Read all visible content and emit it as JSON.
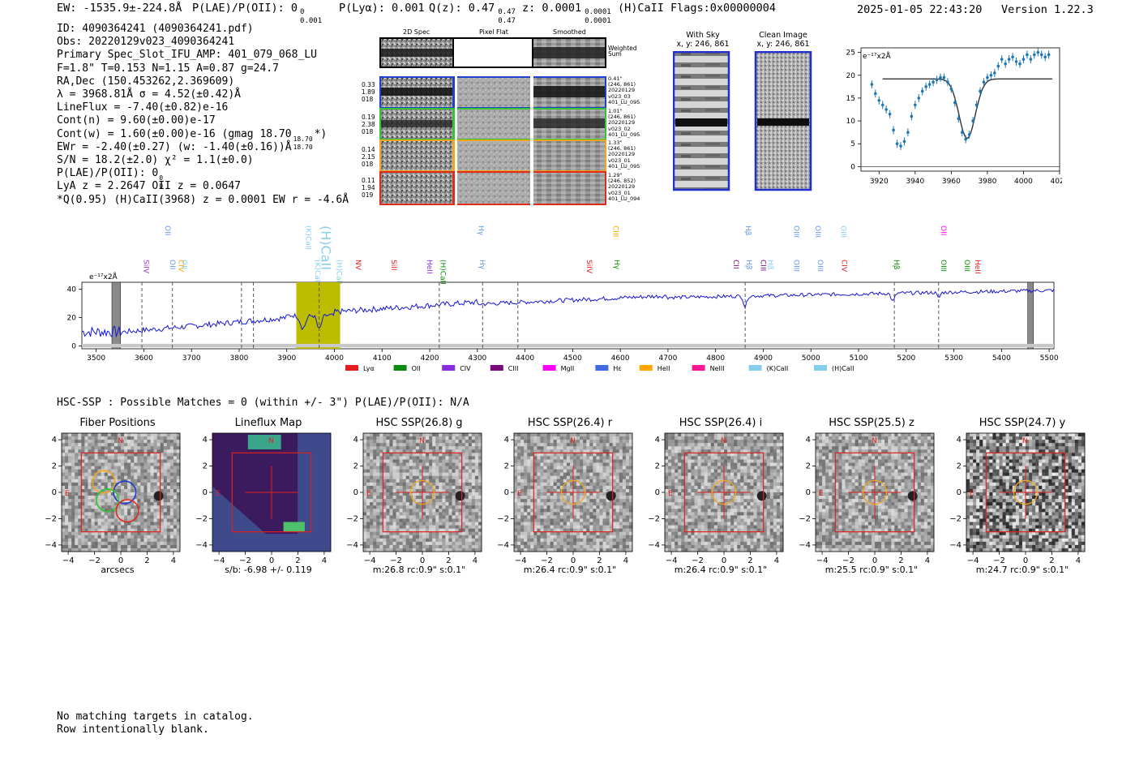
{
  "header": {
    "ew": "EW: -1535.9±-224.8Å",
    "plae": "P(LAE)/P(OII): 0",
    "plae_sup": "0",
    "plae_sub": "0.001",
    "plya": "P(Lyα): 0.001",
    "qz": "Q(z): 0.47",
    "qz_sup": "0.47",
    "qz_sub": "0.47",
    "z": "z: 0.0001",
    "z_sup": "0.0001",
    "z_sub": "0.0001",
    "line": "(H)CaII",
    "flags": "Flags:0x00000004",
    "timestamp": "2025-01-05 22:43:20",
    "version": "Version 1.22.3"
  },
  "info_lines": [
    "ID: 4090364241 (4090364241.pdf)",
    "Obs: 20220129v023_4090364241",
    "Primary Spec_Slot_IFU_AMP: 401_079_068_LU",
    "F=1.8\"  T=0.153  N=1.15  A=0.87  g=24.7",
    "RA,Dec (150.453262,2.369609)",
    "λ = 3968.81Å  σ = 4.52(±0.42)Å",
    "LineFlux = -7.40(±0.82)e-16",
    "Cont(n) = 9.60(±0.00)e-17",
    "Cont(w) = 1.60(±0.00)e-16 (gmag 18.70",
    "EWr = -2.40(±0.27) (w: -1.40(±0.16))Å",
    "S/N = 18.2(±2.0)  χ² = 1.1(±0.0)",
    "P(LAE)/P(OII): 0",
    "LyA z = 2.2647  OII z = 0.0647",
    "*Q(0.95) (H)CaII(3968) z = 0.0001  EW r = -4.6Å"
  ],
  "info_extras": {
    "gmag_sup": "18.70",
    "gmag_sub": "18.70",
    "gmag_close": "*)",
    "plae_sup": "0",
    "plae_sub": "0"
  },
  "cutouts": {
    "col_headers": [
      "2D Spec",
      "Pixel Flat",
      "Smoothed"
    ],
    "weighted_label": "Weighted Sum",
    "rows": [
      {
        "left": [
          "0.33",
          "1.89",
          "018"
        ],
        "right": [
          "0.41\"",
          "(246, 861)",
          "20220129",
          "v023_03",
          "401_LU_095"
        ],
        "color": "#1f3fd0"
      },
      {
        "left": [
          "0.19",
          "2.38",
          "018"
        ],
        "right": [
          "1.01\"",
          "(246, 861)",
          "20220129",
          "v023_02",
          "401_LU_095"
        ],
        "color": "#2fc62f"
      },
      {
        "left": [
          "0.14",
          "2.15",
          "018"
        ],
        "right": [
          "1.33\"",
          "(246, 861)",
          "20220129",
          "v023_01",
          "401_LU_095"
        ],
        "color": "#f3a51c"
      },
      {
        "left": [
          "0.11",
          "1.94",
          "019"
        ],
        "right": [
          "1.29\"",
          "(246, 852)",
          "20220129",
          "v023_01",
          "401_LU_094"
        ],
        "color": "#e02a1a"
      }
    ]
  },
  "sky": {
    "with_sky_title": "With Sky",
    "with_sky_coords": "x, y: 246, 861",
    "clean_title": "Clean Image",
    "clean_coords": "x, y: 246, 861"
  },
  "chart_data": [
    {
      "type": "line",
      "title": "",
      "ylabel": "e⁻¹⁷x2Å",
      "xlim": [
        3910,
        4020
      ],
      "ylim": [
        -1,
        26
      ],
      "xticks": [
        3920,
        3940,
        3960,
        3980,
        4000,
        4020
      ],
      "yticks": [
        0,
        5,
        10,
        15,
        20,
        25
      ],
      "points": [
        {
          "x": 3916,
          "y": 18.0
        },
        {
          "x": 3918,
          "y": 16.0
        },
        {
          "x": 3920,
          "y": 14.5
        },
        {
          "x": 3922,
          "y": 13.5
        },
        {
          "x": 3924,
          "y": 12.5
        },
        {
          "x": 3926,
          "y": 11.5
        },
        {
          "x": 3928,
          "y": 8.0
        },
        {
          "x": 3930,
          "y": 5.0
        },
        {
          "x": 3932,
          "y": 4.5
        },
        {
          "x": 3934,
          "y": 5.5
        },
        {
          "x": 3936,
          "y": 7.5
        },
        {
          "x": 3938,
          "y": 11.0
        },
        {
          "x": 3940,
          "y": 13.5
        },
        {
          "x": 3942,
          "y": 15.0
        },
        {
          "x": 3944,
          "y": 16.5
        },
        {
          "x": 3946,
          "y": 17.5
        },
        {
          "x": 3948,
          "y": 18.0
        },
        {
          "x": 3950,
          "y": 18.5
        },
        {
          "x": 3952,
          "y": 19.0
        },
        {
          "x": 3954,
          "y": 19.5
        },
        {
          "x": 3956,
          "y": 19.5
        },
        {
          "x": 3958,
          "y": 18.5
        },
        {
          "x": 3960,
          "y": 17.0
        },
        {
          "x": 3962,
          "y": 14.0
        },
        {
          "x": 3964,
          "y": 10.5
        },
        {
          "x": 3966,
          "y": 7.5
        },
        {
          "x": 3968,
          "y": 6.0
        },
        {
          "x": 3970,
          "y": 7.0
        },
        {
          "x": 3972,
          "y": 10.0
        },
        {
          "x": 3974,
          "y": 13.5
        },
        {
          "x": 3976,
          "y": 16.5
        },
        {
          "x": 3978,
          "y": 18.5
        },
        {
          "x": 3980,
          "y": 19.5
        },
        {
          "x": 3982,
          "y": 20.0
        },
        {
          "x": 3984,
          "y": 20.5
        },
        {
          "x": 3986,
          "y": 22.0
        },
        {
          "x": 3988,
          "y": 23.5
        },
        {
          "x": 3990,
          "y": 22.5
        },
        {
          "x": 3992,
          "y": 23.5
        },
        {
          "x": 3994,
          "y": 24.0
        },
        {
          "x": 3996,
          "y": 23.0
        },
        {
          "x": 3998,
          "y": 22.5
        },
        {
          "x": 4000,
          "y": 23.5
        },
        {
          "x": 4002,
          "y": 24.5
        },
        {
          "x": 4004,
          "y": 23.5
        },
        {
          "x": 4006,
          "y": 24.5
        },
        {
          "x": 4008,
          "y": 25.0
        },
        {
          "x": 4010,
          "y": 24.5
        },
        {
          "x": 4012,
          "y": 24.0
        },
        {
          "x": 4014,
          "y": 24.5
        }
      ],
      "continuum": 19.2,
      "fit_center": 3968.8,
      "fit_sigma": 4.52,
      "fit_depth": 13.0
    },
    {
      "type": "line",
      "ylabel": "e⁻¹⁷x2Å",
      "xlim": [
        3470,
        5510
      ],
      "ylim": [
        -2,
        45
      ],
      "xticks": [
        3500,
        3600,
        3700,
        3800,
        3900,
        4000,
        4100,
        4200,
        4300,
        4400,
        4500,
        4600,
        4700,
        4800,
        4900,
        5000,
        5100,
        5200,
        5300,
        5400,
        5500
      ],
      "yticks": [
        0,
        20,
        40
      ],
      "highlight_band": [
        3920,
        4012
      ],
      "dashed_lines": [
        3596,
        3660,
        3805,
        3830,
        3968,
        4220,
        4311,
        4385,
        4862,
        5175,
        5268
      ],
      "hatched_bands": [
        [
          3533,
          3551
        ],
        [
          5455,
          5467
        ]
      ],
      "legend": [
        "Lyα",
        "OII",
        "CIV",
        "CIII",
        "MgII",
        "Hε",
        "HeII",
        "NeIII",
        "(K)CaII",
        "(H)CaII"
      ],
      "legend_colors": [
        "#e41a1c",
        "#0a8c0a",
        "#8a2be2",
        "#7a0a7a",
        "#ff00ff",
        "#4169e1",
        "#ffa500",
        "#ff1493",
        "#87ceeb",
        "#87ceeb"
      ],
      "line_labels": [
        {
          "text": "SiIV",
          "x": 3595,
          "row": 1,
          "color": "#9932cc"
        },
        {
          "text": "OII",
          "x": 3640,
          "row": 0,
          "color": "#6495ed"
        },
        {
          "text": "OII",
          "x": 3650,
          "row": 1,
          "color": "#6495ed"
        },
        {
          "text": "CIV",
          "x": 3668,
          "row": 1,
          "color": "#ffa500"
        },
        {
          "text": "OII",
          "x": 3675,
          "row": 1,
          "color": "#87ceeb"
        },
        {
          "text": "(K)CaII",
          "x": 3935,
          "row": 0,
          "color": "#87ceeb"
        },
        {
          "text": "(K)CaII",
          "x": 3955,
          "row": 1,
          "color": "#87ceeb"
        },
        {
          "text": "(H)CaII",
          "x": 3968,
          "row": 0,
          "color": "#87ceeb"
        },
        {
          "text": "(H)CaII",
          "x": 4000,
          "row": 1,
          "color": "#87ceeb"
        },
        {
          "text": "NV",
          "x": 4040,
          "row": 1,
          "color": "#e41a1c"
        },
        {
          "text": "SiII",
          "x": 4115,
          "row": 1,
          "color": "#e41a1c"
        },
        {
          "text": "HeII",
          "x": 4190,
          "row": 1,
          "color": "#8a2be2"
        },
        {
          "text": "(H)CaII",
          "x": 4218,
          "row": 1,
          "color": "#0a8c0a"
        },
        {
          "text": "Hγ",
          "x": 4298,
          "row": 0,
          "color": "#6495ed"
        },
        {
          "text": "Hγ",
          "x": 4300,
          "row": 1,
          "color": "#6495ed"
        },
        {
          "text": "SiIV",
          "x": 4525,
          "row": 1,
          "color": "#e41a1c"
        },
        {
          "text": "CIII",
          "x": 4580,
          "row": 0,
          "color": "#ffa500"
        },
        {
          "text": "Hγ",
          "x": 4583,
          "row": 1,
          "color": "#0a8c0a"
        },
        {
          "text": "CII",
          "x": 4833,
          "row": 1,
          "color": "#7a0a7a"
        },
        {
          "text": "Hβ",
          "x": 4858,
          "row": 0,
          "color": "#6495ed"
        },
        {
          "text": "Hβ",
          "x": 4860,
          "row": 1,
          "color": "#6495ed"
        },
        {
          "text": "CIII",
          "x": 4890,
          "row": 1,
          "color": "#7a0a7a"
        },
        {
          "text": "Hβ",
          "x": 4905,
          "row": 1,
          "color": "#87ceeb"
        },
        {
          "text": "OIII",
          "x": 4960,
          "row": 0,
          "color": "#6495ed"
        },
        {
          "text": "OIII",
          "x": 4960,
          "row": 1,
          "color": "#6495ed"
        },
        {
          "text": "OIII",
          "x": 5005,
          "row": 0,
          "color": "#6495ed"
        },
        {
          "text": "OIII",
          "x": 5010,
          "row": 1,
          "color": "#6495ed"
        },
        {
          "text": "OIII",
          "x": 5058,
          "row": 0,
          "color": "#87ceeb"
        },
        {
          "text": "CIV",
          "x": 5060,
          "row": 1,
          "color": "#e41a1c"
        },
        {
          "text": "Hβ",
          "x": 5170,
          "row": 1,
          "color": "#0a8c0a"
        },
        {
          "text": "OII",
          "x": 5268,
          "row": 0,
          "color": "#ff00ff"
        },
        {
          "text": "OIII",
          "x": 5268,
          "row": 1,
          "color": "#0a8c0a"
        },
        {
          "text": "OIII",
          "x": 5318,
          "row": 1,
          "color": "#0a8c0a"
        },
        {
          "text": "HeII",
          "x": 5340,
          "row": 1,
          "color": "#e41a1c"
        }
      ],
      "line_label_font_sizes": [
        9,
        9,
        9,
        9,
        9,
        9,
        9,
        16,
        9,
        9,
        9,
        9,
        9,
        9,
        9,
        9,
        9,
        9,
        9,
        9,
        9,
        9,
        9,
        9,
        9,
        9,
        9,
        9,
        9,
        9,
        9,
        9,
        9,
        9
      ]
    }
  ],
  "hsc": {
    "summary": "HSC-SSP : Possible Matches = 0 (within +/- 3\")  P(LAE)/P(OII): N/A",
    "ticks": [
      "-4",
      "-2",
      "0",
      "2",
      "4"
    ],
    "panels": [
      {
        "title": "Fiber Positions",
        "caption": "arcsecs",
        "kind": "fiber"
      },
      {
        "title": "Lineflux Map",
        "caption": "s/b: -6.98 +/- 0.119",
        "kind": "lineflux"
      },
      {
        "title": "HSC SSP(26.8) g",
        "caption": "m:26.8 rc:0.9\"  s:0.1\"",
        "kind": "cut"
      },
      {
        "title": "HSC SSP(26.4) r",
        "caption": "m:26.4 rc:0.9\"  s:0.1\"",
        "kind": "cut"
      },
      {
        "title": "HSC SSP(26.4) i",
        "caption": "m:26.4 rc:0.9\"  s:0.1\"",
        "kind": "cut"
      },
      {
        "title": "HSC SSP(25.5) z",
        "caption": "m:25.5 rc:0.9\"  s:0.1\"",
        "kind": "cut"
      },
      {
        "title": "HSC SSP(24.7) y",
        "caption": "m:24.7 rc:0.9\"  s:0.1\"",
        "kind": "cut_dark"
      }
    ],
    "compass_n": "N",
    "compass_e": "E"
  },
  "footer": {
    "line1": "No matching targets in catalog.",
    "line2": "Row intentionally blank."
  }
}
